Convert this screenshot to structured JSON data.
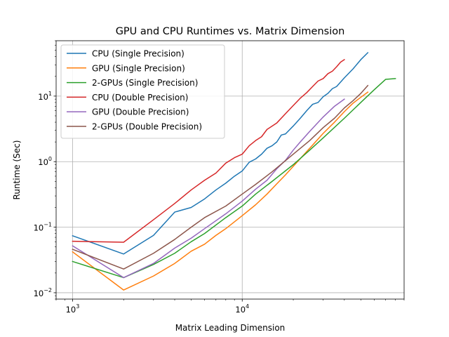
{
  "chart_data": {
    "type": "line",
    "title": "GPU and CPU Runtimes vs. Matrix Dimension",
    "xlabel": "Matrix Leading Dimension",
    "ylabel": "Runtime (Sec)",
    "x_scale": "log",
    "y_scale": "log",
    "xlim": [
      800,
      90000
    ],
    "ylim": [
      0.008,
      70
    ],
    "grid": true,
    "legend_position": "top-left",
    "x_ticks": [
      {
        "value": 1000,
        "base": "10",
        "exp": "3"
      },
      {
        "value": 10000,
        "base": "10",
        "exp": "4"
      }
    ],
    "y_ticks": [
      {
        "value": 0.01,
        "base": "10",
        "exp": "−2"
      },
      {
        "value": 0.1,
        "base": "10",
        "exp": "−1"
      },
      {
        "value": 1,
        "base": "10",
        "exp": "0"
      },
      {
        "value": 10,
        "base": "10",
        "exp": "1"
      }
    ],
    "series": [
      {
        "name": "CPU (Single Precision)",
        "color": "#1f77b4",
        "x": [
          1000,
          2000,
          3000,
          4000,
          5000,
          6000,
          7000,
          8000,
          9000,
          10000,
          11000,
          12000,
          13000,
          14000,
          15000,
          16000,
          17000,
          18000,
          20000,
          22000,
          24000,
          26000,
          28000,
          30000,
          32000,
          34000,
          36000,
          40000,
          45000,
          50000,
          55000
        ],
        "y": [
          0.074,
          0.039,
          0.075,
          0.17,
          0.2,
          0.27,
          0.37,
          0.47,
          0.6,
          0.72,
          0.98,
          1.1,
          1.3,
          1.6,
          1.75,
          2.0,
          2.55,
          2.65,
          3.5,
          4.6,
          6.0,
          7.5,
          8.0,
          9.8,
          11.0,
          13.0,
          14.0,
          19.0,
          26.0,
          36.0,
          46.0
        ]
      },
      {
        "name": "GPU (Single Precision)",
        "color": "#ff7f0e",
        "x": [
          1000,
          2000,
          3000,
          4000,
          5000,
          6000,
          7000,
          8000,
          10000,
          12000,
          14000,
          16000,
          18000,
          20000,
          25000,
          30000,
          35000,
          40000,
          45000,
          50000,
          55000
        ],
        "y": [
          0.042,
          0.011,
          0.018,
          0.028,
          0.043,
          0.055,
          0.075,
          0.095,
          0.15,
          0.22,
          0.32,
          0.46,
          0.63,
          0.85,
          1.6,
          2.7,
          4.0,
          5.8,
          7.8,
          9.6,
          11.5
        ]
      },
      {
        "name": "2-GPUs (Single Precision)",
        "color": "#2ca02c",
        "x": [
          1000,
          2000,
          3000,
          4000,
          5000,
          6000,
          8000,
          10000,
          12000,
          15000,
          20000,
          25000,
          30000,
          40000,
          50000,
          60000,
          70000,
          80000
        ],
        "y": [
          0.03,
          0.017,
          0.027,
          0.04,
          0.06,
          0.08,
          0.14,
          0.21,
          0.32,
          0.5,
          0.9,
          1.5,
          2.3,
          4.6,
          8.0,
          12.5,
          18.0,
          18.5
        ]
      },
      {
        "name": "CPU (Double Precision)",
        "color": "#d62728",
        "x": [
          1000,
          2000,
          3000,
          4000,
          5000,
          6000,
          7000,
          8000,
          9000,
          10000,
          11000,
          12000,
          13000,
          14000,
          16000,
          18000,
          20000,
          22000,
          24000,
          26000,
          28000,
          30000,
          32000,
          34000,
          36000,
          38000,
          40000
        ],
        "y": [
          0.061,
          0.059,
          0.13,
          0.23,
          0.37,
          0.52,
          0.67,
          0.95,
          1.15,
          1.3,
          1.75,
          2.1,
          2.4,
          3.1,
          3.9,
          5.4,
          7.2,
          9.3,
          11.3,
          14.0,
          17.0,
          18.5,
          22.0,
          24.0,
          28.0,
          33.0,
          36.0
        ]
      },
      {
        "name": "GPU (Double Precision)",
        "color": "#9467bd",
        "x": [
          1000,
          2000,
          3000,
          4000,
          5000,
          6000,
          8000,
          10000,
          12000,
          14000,
          16000,
          18000,
          20000,
          22000,
          25000,
          30000,
          35000,
          40000
        ],
        "y": [
          0.052,
          0.017,
          0.028,
          0.048,
          0.068,
          0.095,
          0.16,
          0.25,
          0.38,
          0.52,
          0.78,
          1.05,
          1.5,
          2.0,
          2.9,
          4.8,
          7.0,
          9.0
        ]
      },
      {
        "name": "2-GPUs (Double Precision)",
        "color": "#8c564b",
        "x": [
          1000,
          2000,
          3000,
          4000,
          5000,
          6000,
          8000,
          10000,
          12000,
          15000,
          20000,
          25000,
          30000,
          35000,
          40000,
          45000,
          50000,
          55000
        ],
        "y": [
          0.046,
          0.023,
          0.04,
          0.065,
          0.1,
          0.14,
          0.21,
          0.32,
          0.45,
          0.7,
          1.3,
          2.1,
          3.3,
          4.6,
          6.6,
          8.5,
          11.0,
          14.5
        ]
      }
    ]
  }
}
